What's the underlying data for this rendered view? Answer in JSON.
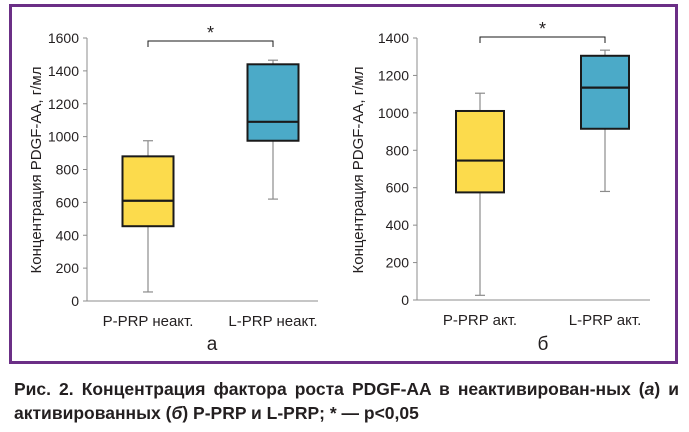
{
  "chart_data": [
    {
      "type": "box",
      "panel_label": "а",
      "ylabel": "Концентрация PDGF-AA, г/мл",
      "ylim": [
        0,
        1600
      ],
      "yticks": [
        "0",
        "200",
        "400",
        "600",
        "800",
        "1000",
        "1200",
        "1400",
        "1600"
      ],
      "categories": [
        "P-PRP неакт.",
        "L-PRP неакт."
      ],
      "boxes": [
        {
          "category": "P-PRP неакт.",
          "min": 55,
          "q1": 455,
          "median": 610,
          "q3": 880,
          "max": 975,
          "color": "#fcdb4c"
        },
        {
          "category": "L-PRP неакт.",
          "min": 620,
          "q1": 975,
          "median": 1090,
          "q3": 1440,
          "max": 1465,
          "color": "#4baac8"
        }
      ],
      "significance": {
        "pair": [
          0,
          1
        ],
        "label": "*"
      },
      "grid": false
    },
    {
      "type": "box",
      "panel_label": "б",
      "ylabel": "Концентрация PDGF-AA, г/мл",
      "ylim": [
        0,
        1400
      ],
      "yticks": [
        "0",
        "200",
        "400",
        "600",
        "800",
        "1000",
        "1200",
        "1400"
      ],
      "categories": [
        "P-PRP акт.",
        "L-PRP акт."
      ],
      "boxes": [
        {
          "category": "P-PRP акт.",
          "min": 25,
          "q1": 575,
          "median": 745,
          "q3": 1010,
          "max": 1105,
          "color": "#fcdb4c"
        },
        {
          "category": "L-PRP акт.",
          "min": 580,
          "q1": 915,
          "median": 1135,
          "q3": 1305,
          "max": 1335,
          "color": "#4baac8"
        }
      ],
      "significance": {
        "pair": [
          0,
          1
        ],
        "label": "*"
      },
      "grid": false
    }
  ],
  "caption": {
    "lead": "Рис. 2. Концентрация фактора роста PDGF-AA в неактивирован-ных (",
    "a_ital": "а",
    "mid": ") и активированных (",
    "b_ital": "б",
    "tail": ") P-PRP и L-PRP; * — p<0,05"
  },
  "colors": {
    "frame": "#6b2f86",
    "p_prp": "#fcdb4c",
    "l_prp": "#4baac8",
    "whisker": "#8c8c8c",
    "text": "#231f20"
  }
}
